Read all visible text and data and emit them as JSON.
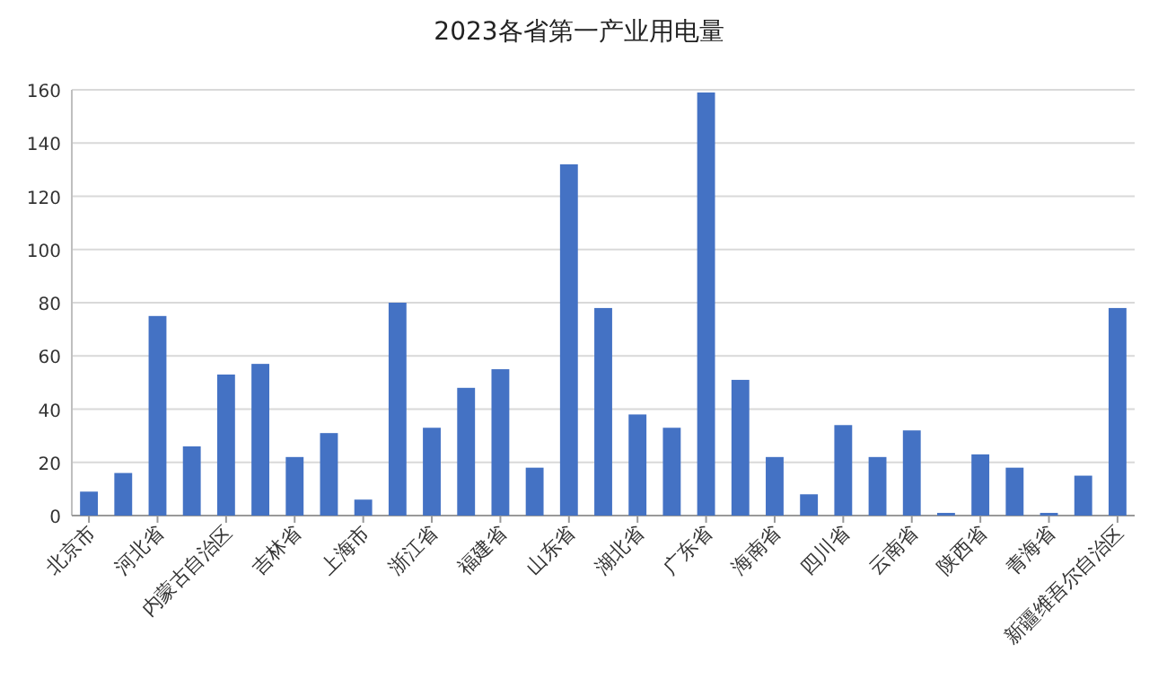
{
  "chart_data": {
    "type": "bar",
    "title": "2023各省第一产业用电量",
    "categories": [
      "北京市",
      null,
      "河北省",
      null,
      "内蒙古自治区",
      null,
      "吉林省",
      null,
      "上海市",
      null,
      "浙江省",
      null,
      "福建省",
      null,
      "山东省",
      null,
      "湖北省",
      null,
      "广东省",
      null,
      "海南省",
      null,
      "四川省",
      null,
      "云南省",
      null,
      "陕西省",
      null,
      "青海省",
      null,
      "新疆维吾尔自治区"
    ],
    "values": [
      9,
      16,
      75,
      26,
      53,
      57,
      22,
      31,
      6,
      80,
      33,
      48,
      55,
      18,
      132,
      78,
      38,
      33,
      159,
      51,
      22,
      8,
      34,
      22,
      32,
      1,
      23,
      18,
      1,
      15,
      78
    ],
    "color": "#4472c4",
    "ylim": [
      0,
      160
    ],
    "yticks": [
      0,
      20,
      40,
      60,
      80,
      100,
      120,
      140,
      160
    ],
    "grid": "y"
  }
}
